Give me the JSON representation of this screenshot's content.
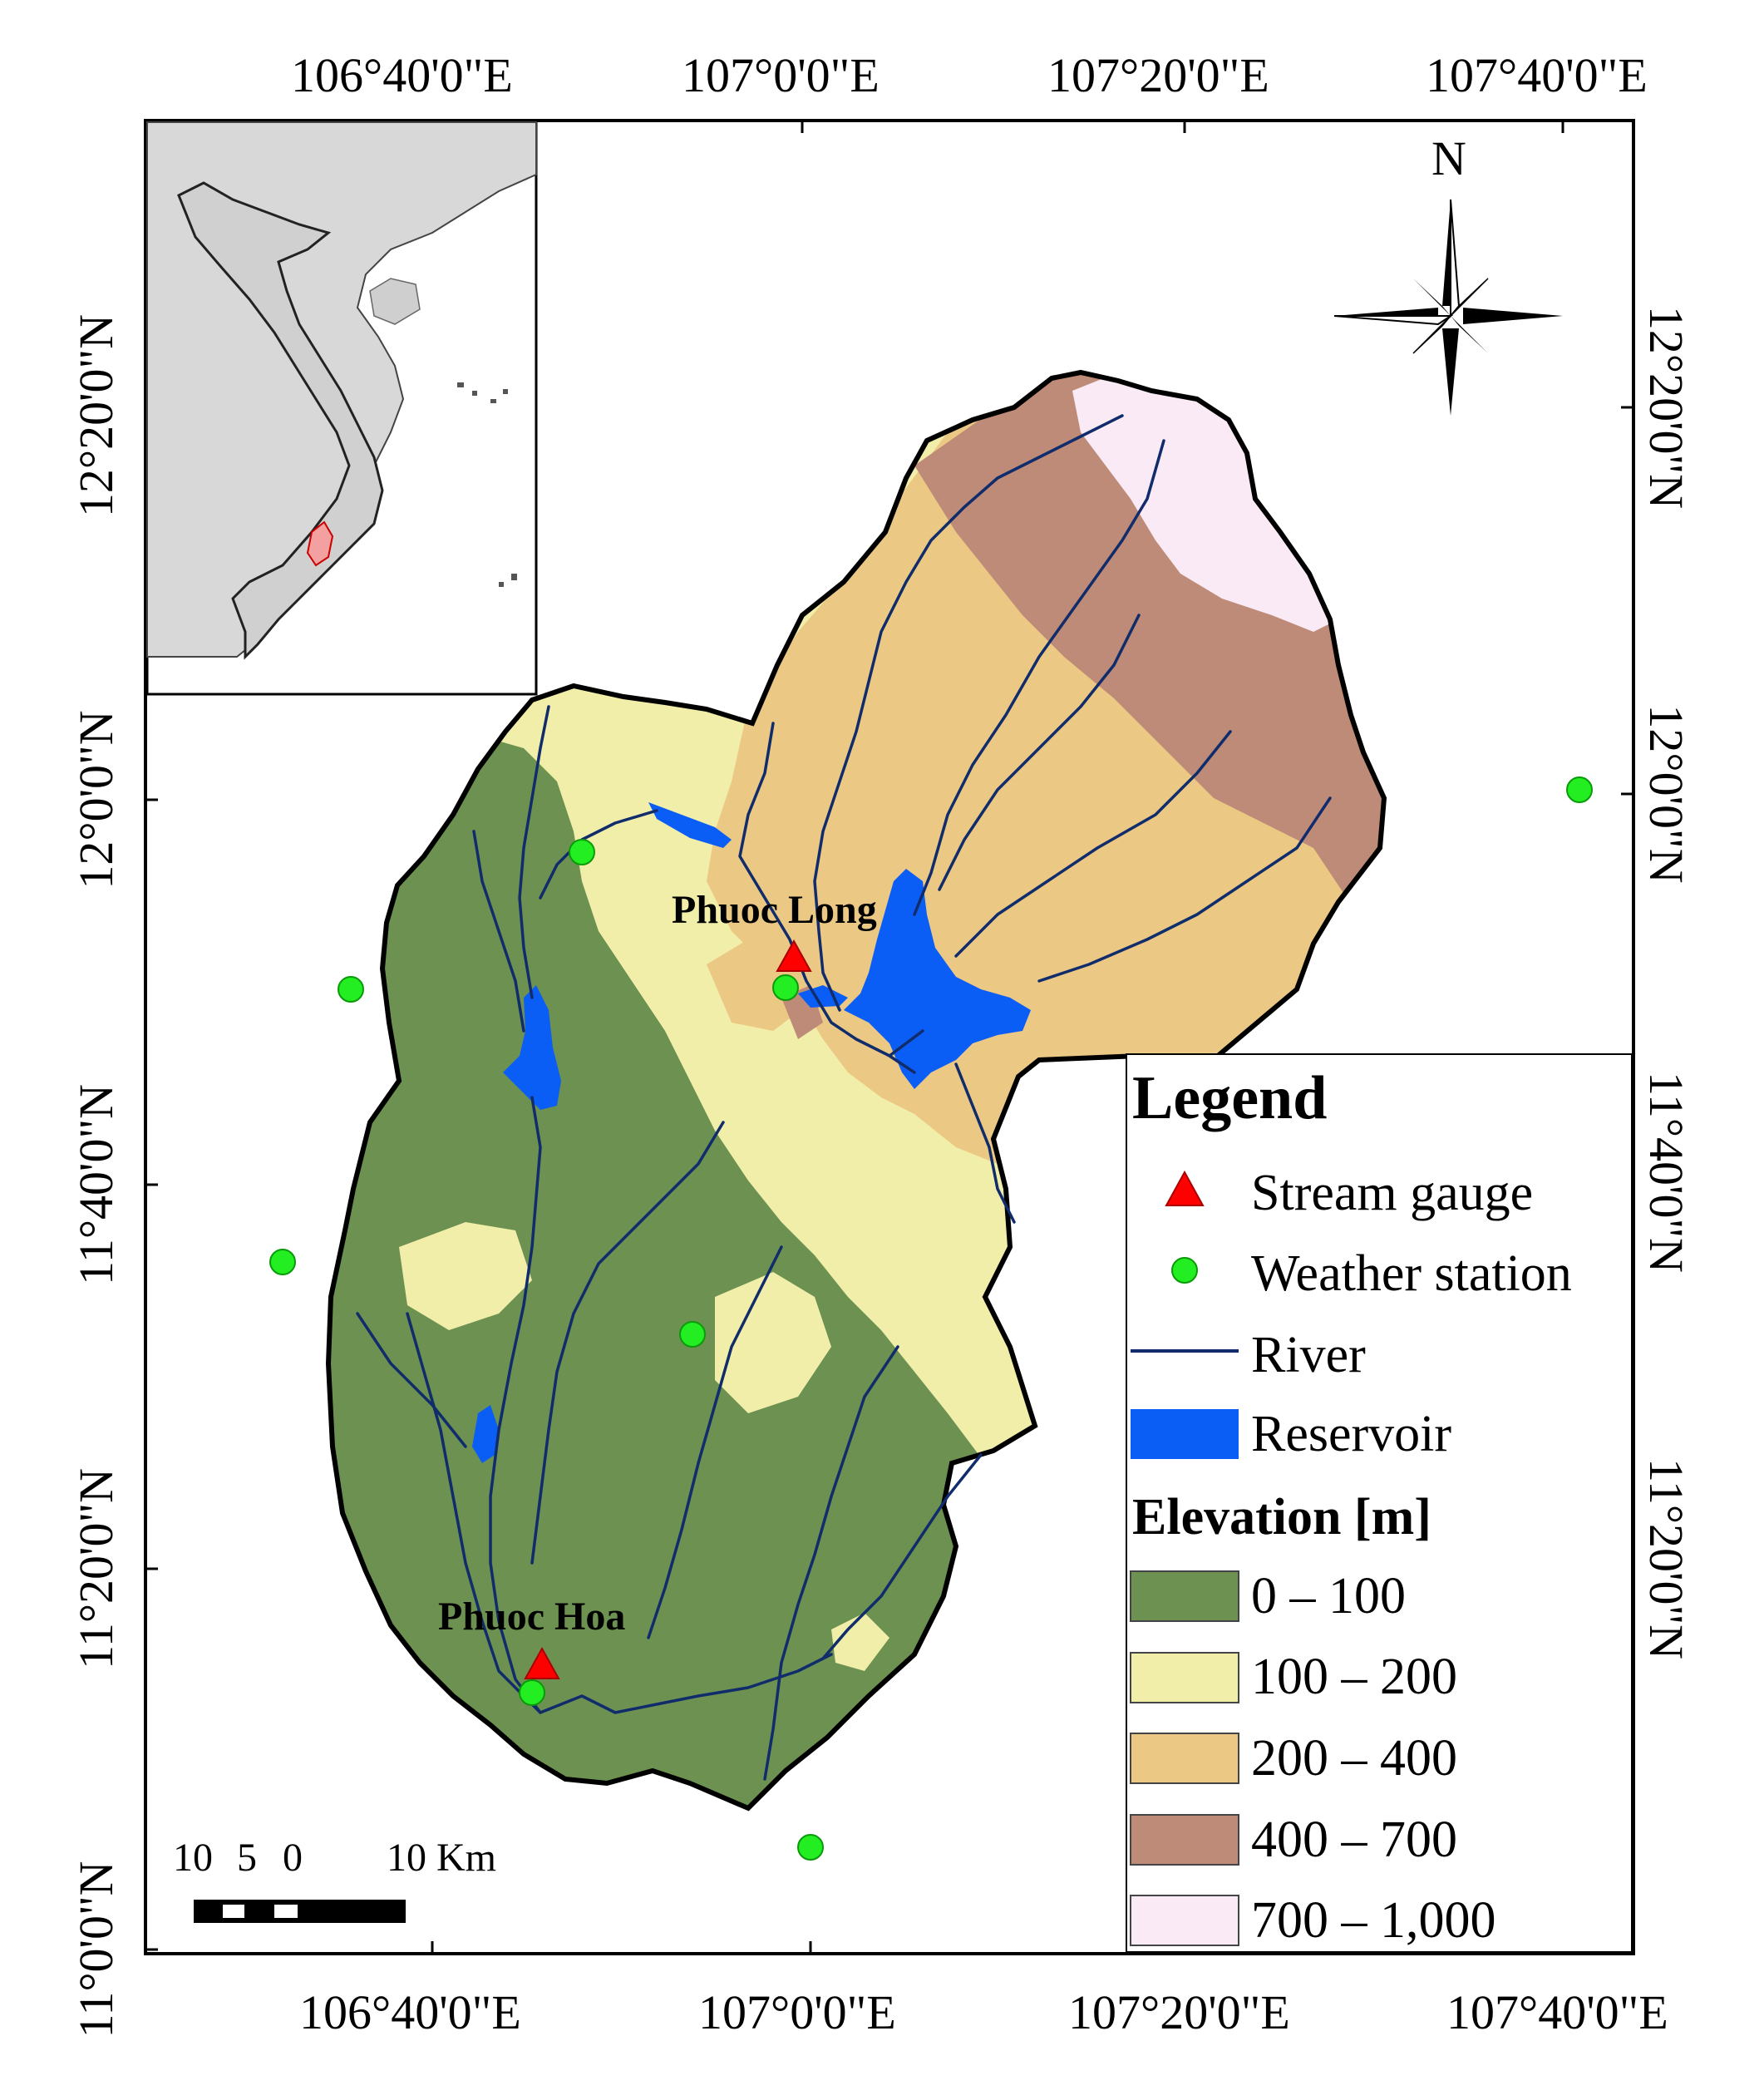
{
  "map": {
    "top_lon_labels": [
      "106°40'0\"E",
      "107°0'0\"E",
      "107°20'0\"E",
      "107°40'0\"E"
    ],
    "bottom_lon_labels": [
      "106°40'0\"E",
      "107°0'0\"E",
      "107°20'0\"E",
      "107°40'0\"E"
    ],
    "left_lat_labels": [
      "12°20'0\"N",
      "12°0'0\"N",
      "11°40'0\"N",
      "11°20'0\"N",
      "11°0'0\"N"
    ],
    "right_lat_labels": [
      "12°20'0\"N",
      "12°0'0\"N",
      "11°40'0\"N",
      "11°20'0\"N"
    ],
    "north_label": "N",
    "places": {
      "phuoc_long": "Phuoc Long",
      "phuoc_hoa": "Phuoc Hoa"
    },
    "scale_bar": {
      "labels": [
        "10",
        "5",
        "0",
        "10 Km"
      ]
    }
  },
  "legend": {
    "title": "Legend",
    "stream_gauge": "Stream gauge",
    "weather_station": "Weather station",
    "river": "River",
    "reservoir": "Reservoir",
    "elevation_title": "Elevation [m]",
    "elevation_classes": [
      "0 – 100",
      "100 – 200",
      "200 – 400",
      "400 – 700",
      "700 – 1,000"
    ]
  },
  "colors": {
    "elev_0_100": "#6d9151",
    "elev_100_200": "#f1eeaa",
    "elev_200_400": "#ebc884",
    "elev_400_700": "#bd8b77",
    "elev_700_1000": "#f9eaf5",
    "river": "#112c6b",
    "reservoir": "#0b5ef5",
    "stream_gauge": "#ff0000",
    "weather_station": "#22ee22",
    "inset_land": "#d8d8d8",
    "inset_basin": "#f2a0a0"
  }
}
